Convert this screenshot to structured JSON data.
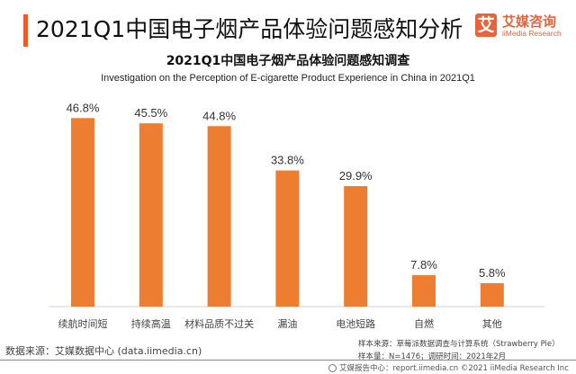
{
  "header": {
    "title": "2021Q1中国电子烟产品体验问题感知分析",
    "logo_mark": "艾",
    "logo_cn": "艾媒咨询",
    "logo_en": "iiMedia Research"
  },
  "colors": {
    "accent": "#f05a28",
    "bar": "#ed7d31",
    "logo": "#e8623a"
  },
  "chart_data": {
    "type": "bar",
    "title": "2021Q1中国电子烟产品体验问题感知调查",
    "subtitle": "Investigation on the Perception of E-cigarette Product Experience in China in 2021Q1",
    "categories": [
      "续航时间短",
      "持续高温",
      "材料品质不过关",
      "漏油",
      "电池短路",
      "自燃",
      "其他"
    ],
    "values": [
      46.8,
      45.5,
      44.8,
      33.8,
      29.9,
      7.8,
      5.8
    ],
    "labels": [
      "46.8%",
      "45.5%",
      "44.8%",
      "33.8%",
      "29.9%",
      "7.8%",
      "5.8%"
    ],
    "unit": "%",
    "xlabel": "",
    "ylabel": "",
    "ylim": [
      0,
      50
    ],
    "grid": false,
    "legend": "none"
  },
  "sources": {
    "data_source": "数据来源：艾媒数据中心 (data.iimedia.cn)",
    "sample_source": "样本来源：草莓派数据调查与计算系统（Strawberry Pie）",
    "sample_size": "样本量：N=1476；调研时间：2021年2月"
  },
  "footer": {
    "text": "艾媒报告中心：report.iimedia.cn   ©2021  iiMedia Research  Inc"
  }
}
